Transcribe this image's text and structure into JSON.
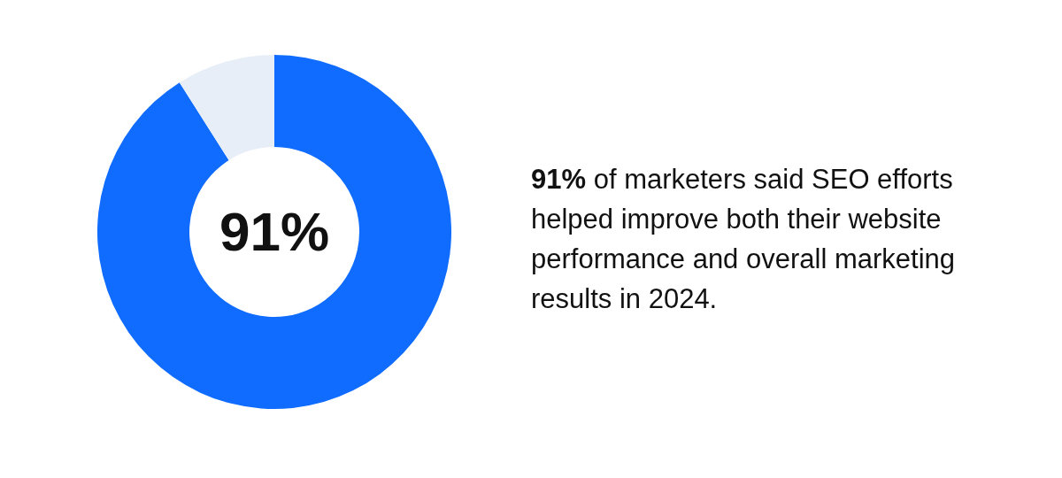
{
  "chart_data": {
    "type": "donut",
    "title": "91% of marketers said SEO efforts helped improve both their website performance and overall marketing results in 2024.",
    "categories": [
      null,
      null
    ],
    "values": [
      91,
      9
    ],
    "colors": [
      "#0f6cff",
      "#e8eef8"
    ],
    "value_labels": [
      "91%",
      null
    ],
    "legend": false
  }
}
